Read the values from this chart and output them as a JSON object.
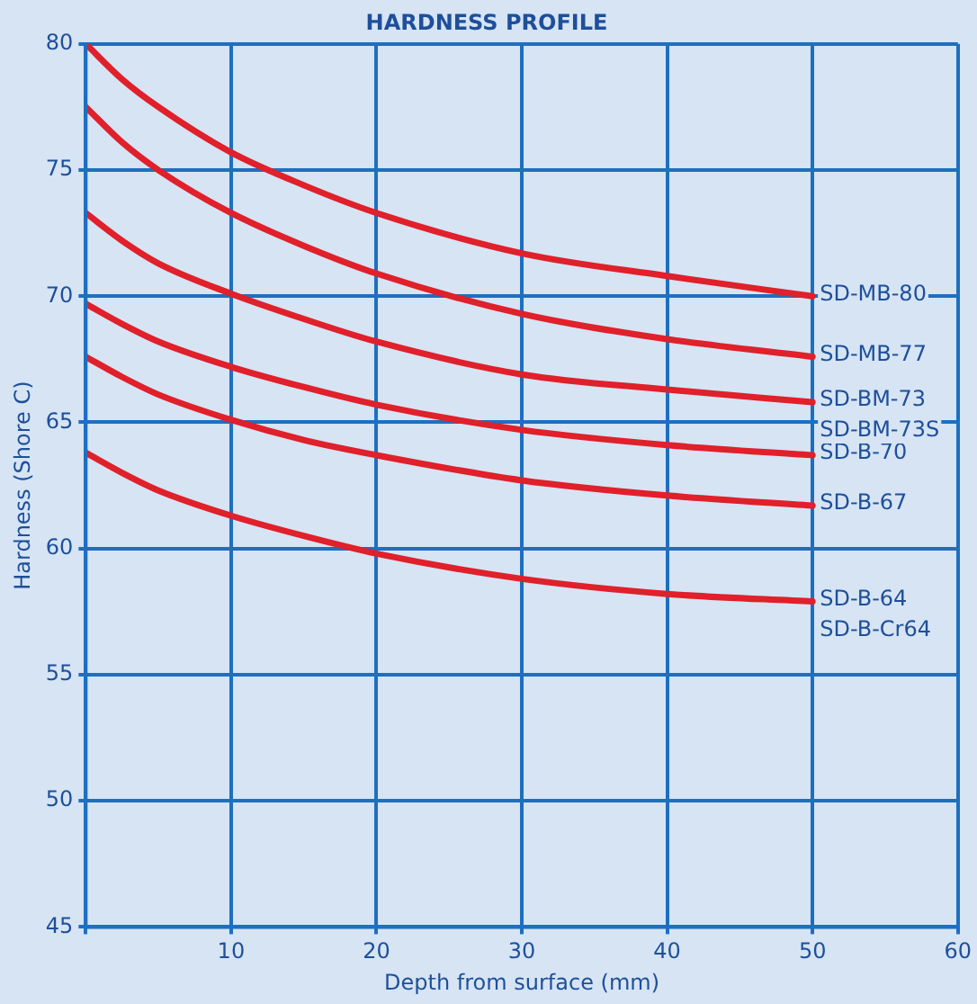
{
  "chart_data": {
    "type": "line",
    "title": "HARDNESS PROFILE",
    "xlabel": "Depth from surface (mm)",
    "ylabel": "Hardness (Shore C)",
    "xlim": [
      0,
      60
    ],
    "xticks": [
      {
        "value": 0,
        "label": null
      },
      10,
      20,
      30,
      40,
      50,
      60
    ],
    "ylim": [
      45,
      80
    ],
    "yticks": [
      45,
      50,
      55,
      60,
      65,
      70,
      75,
      80
    ],
    "grid": true,
    "legend": false,
    "marker": "none",
    "line_style": "solid",
    "series": [
      {
        "name": "SD-MB-80",
        "color": "#e0202a",
        "x": [
          0,
          2.5,
          5,
          10,
          15,
          20,
          30,
          40,
          50
        ],
        "values": [
          80,
          78.6,
          77.5,
          75.7,
          74.4,
          73.3,
          71.7,
          70.8,
          70
        ]
      },
      {
        "name": "SD-MB-77",
        "color": "#e0202a",
        "x": [
          0,
          2.5,
          5,
          10,
          15,
          20,
          30,
          40,
          50
        ],
        "values": [
          77.5,
          76.1,
          75,
          73.3,
          72,
          70.9,
          69.3,
          68.3,
          67.6
        ]
      },
      {
        "name": "SD-BM-73",
        "color": "#e0202a",
        "x": [
          0,
          2.5,
          5,
          10,
          15,
          20,
          30,
          40,
          50
        ],
        "values": [
          73.3,
          72.2,
          71.3,
          70.1,
          69.1,
          68.2,
          66.9,
          66.3,
          65.8
        ]
      },
      {
        "name": "SD-B-70",
        "color": "#e0202a",
        "x": [
          0,
          2.5,
          5,
          10,
          15,
          20,
          30,
          40,
          50
        ],
        "values": [
          69.7,
          68.9,
          68.2,
          67.2,
          66.4,
          65.7,
          64.7,
          64.1,
          63.7
        ]
      },
      {
        "name": "SD-B-67",
        "color": "#e0202a",
        "x": [
          0,
          2.5,
          5,
          10,
          15,
          20,
          30,
          40,
          50
        ],
        "values": [
          67.6,
          66.8,
          66.1,
          65.1,
          64.3,
          63.7,
          62.7,
          62.1,
          61.7
        ]
      },
      {
        "name": "SD-B-64",
        "color": "#e0202a",
        "x": [
          0,
          2.5,
          5,
          10,
          15,
          20,
          30,
          40,
          50
        ],
        "values": [
          63.8,
          63,
          62.3,
          61.3,
          60.5,
          59.8,
          58.8,
          58.2,
          57.9
        ]
      }
    ],
    "annotations": [
      "SD-BM-73S",
      "SD-B-Cr64"
    ]
  }
}
